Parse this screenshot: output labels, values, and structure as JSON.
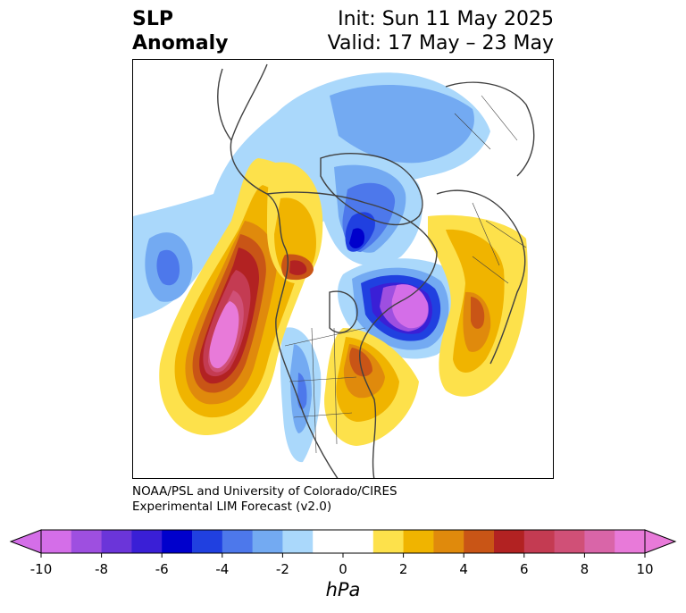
{
  "title": {
    "left_line1": "SLP",
    "left_line2": "Anomaly",
    "init": "Init: Sun 11 May 2025",
    "valid": "Valid: 17 May – 23 May"
  },
  "credit": {
    "line1": "NOAA/PSL and University of Colorado/CIRES",
    "line2": "Experimental LIM Forecast (v2.0)"
  },
  "colorbar": {
    "units": "hPa",
    "ticks": [
      "-10",
      "-8",
      "-6",
      "-4",
      "-2",
      "0",
      "2",
      "4",
      "6",
      "8",
      "10"
    ],
    "bins": [
      {
        "lo": -10,
        "hi": -9,
        "color": "#d46ee8"
      },
      {
        "lo": -9,
        "hi": -8,
        "color": "#9e4fe0"
      },
      {
        "lo": -8,
        "hi": -7,
        "color": "#6b35d9"
      },
      {
        "lo": -7,
        "hi": -6,
        "color": "#3a1fd6"
      },
      {
        "lo": -6,
        "hi": -5,
        "color": "#0000cc"
      },
      {
        "lo": -5,
        "hi": -4,
        "color": "#2040e0"
      },
      {
        "lo": -4,
        "hi": -3,
        "color": "#4d78eb"
      },
      {
        "lo": -3,
        "hi": -2,
        "color": "#73aaf2"
      },
      {
        "lo": -2,
        "hi": -1,
        "color": "#aad8fb"
      },
      {
        "lo": -1,
        "hi": 1,
        "color": "#ffffff"
      },
      {
        "lo": 1,
        "hi": 2,
        "color": "#fde14b"
      },
      {
        "lo": 2,
        "hi": 3,
        "color": "#f0b400"
      },
      {
        "lo": 3,
        "hi": 4,
        "color": "#e08a0c"
      },
      {
        "lo": 4,
        "hi": 5,
        "color": "#c95516"
      },
      {
        "lo": 5,
        "hi": 6,
        "color": "#b22222"
      },
      {
        "lo": 6,
        "hi": 7,
        "color": "#c43b52"
      },
      {
        "lo": 7,
        "hi": 8,
        "color": "#d05077"
      },
      {
        "lo": 8,
        "hi": 9,
        "color": "#d965a8"
      },
      {
        "lo": 9,
        "hi": 10,
        "color": "#e87ad9"
      }
    ],
    "under_color": "#d46ee8",
    "over_color": "#e87ad9"
  },
  "map": {
    "coastline_color": "#404040",
    "features": [
      {
        "name": "central-pacific-high",
        "value": 10,
        "max_color": "#e87ad9"
      },
      {
        "name": "west-canada-high",
        "value": 6
      },
      {
        "name": "north-atlantic-low",
        "value": -10
      },
      {
        "name": "europe-high",
        "value": 4
      },
      {
        "name": "eastern-us-high",
        "value": 4
      },
      {
        "name": "aleutian-low",
        "value": -4
      },
      {
        "name": "arctic-low",
        "value": -6
      },
      {
        "name": "central-us-low",
        "value": -3
      }
    ]
  }
}
